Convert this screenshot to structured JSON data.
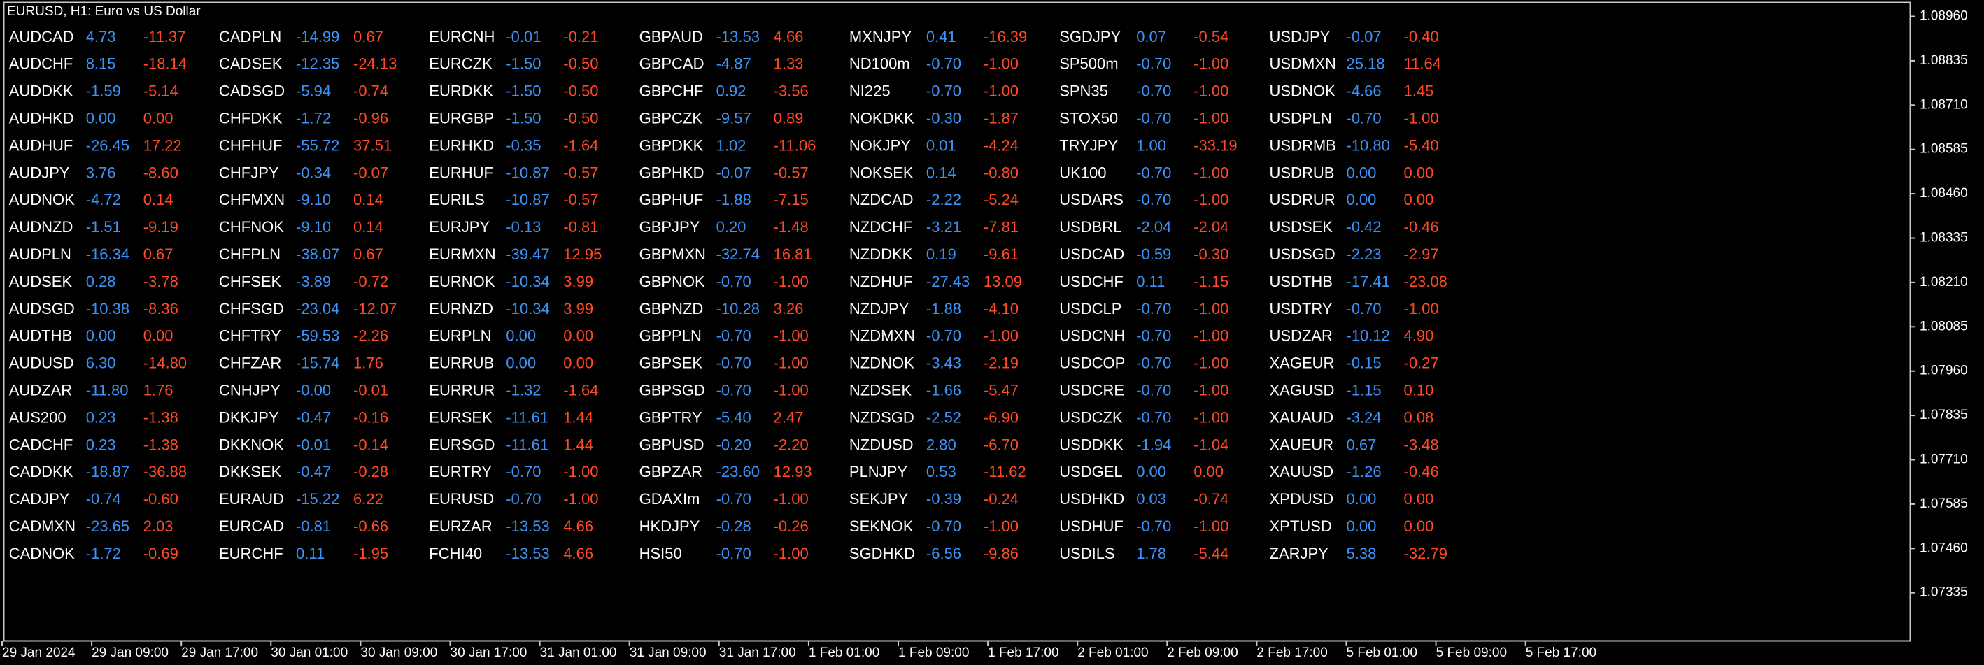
{
  "header": {
    "title": "EURUSD, H1:  Euro vs US Dollar"
  },
  "columns": [
    [
      [
        "AUDCAD",
        "4.73",
        "-11.37"
      ],
      [
        "AUDCHF",
        "8.15",
        "-18.14"
      ],
      [
        "AUDDKK",
        "-1.59",
        "-5.14"
      ],
      [
        "AUDHKD",
        "0.00",
        "0.00"
      ],
      [
        "AUDHUF",
        "-26.45",
        "17.22"
      ],
      [
        "AUDJPY",
        "3.76",
        "-8.60"
      ],
      [
        "AUDNOK",
        "-4.72",
        "0.14"
      ],
      [
        "AUDNZD",
        "-1.51",
        "-9.19"
      ],
      [
        "AUDPLN",
        "-16.34",
        "0.67"
      ],
      [
        "AUDSEK",
        "0.28",
        "-3.78"
      ],
      [
        "AUDSGD",
        "-10.38",
        "-8.36"
      ],
      [
        "AUDTHB",
        "0.00",
        "0.00"
      ],
      [
        "AUDUSD",
        "6.30",
        "-14.80"
      ],
      [
        "AUDZAR",
        "-11.80",
        "1.76"
      ],
      [
        "AUS200",
        "0.23",
        "-1.38"
      ],
      [
        "CADCHF",
        "0.23",
        "-1.38"
      ],
      [
        "CADDKK",
        "-18.87",
        "-36.88"
      ],
      [
        "CADJPY",
        "-0.74",
        "-0.60"
      ],
      [
        "CADMXN",
        "-23.65",
        "2.03"
      ],
      [
        "CADNOK",
        "-1.72",
        "-0.69"
      ]
    ],
    [
      [
        "CADPLN",
        "-14.99",
        "0.67"
      ],
      [
        "CADSEK",
        "-12.35",
        "-24.13"
      ],
      [
        "CADSGD",
        "-5.94",
        "-0.74"
      ],
      [
        "CHFDKK",
        "-1.72",
        "-0.96"
      ],
      [
        "CHFHUF",
        "-55.72",
        "37.51"
      ],
      [
        "CHFJPY",
        "-0.34",
        "-0.07"
      ],
      [
        "CHFMXN",
        "-9.10",
        "0.14"
      ],
      [
        "CHFNOK",
        "-9.10",
        "0.14"
      ],
      [
        "CHFPLN",
        "-38.07",
        "0.67"
      ],
      [
        "CHFSEK",
        "-3.89",
        "-0.72"
      ],
      [
        "CHFSGD",
        "-23.04",
        "-12.07"
      ],
      [
        "CHFTRY",
        "-59.53",
        "-2.26"
      ],
      [
        "CHFZAR",
        "-15.74",
        "1.76"
      ],
      [
        "CNHJPY",
        "-0.00",
        "-0.01"
      ],
      [
        "DKKJPY",
        "-0.47",
        "-0.16"
      ],
      [
        "DKKNOK",
        "-0.01",
        "-0.14"
      ],
      [
        "DKKSEK",
        "-0.47",
        "-0.28"
      ],
      [
        "EURAUD",
        "-15.22",
        "6.22"
      ],
      [
        "EURCAD",
        "-0.81",
        "-0.66"
      ],
      [
        "EURCHF",
        "0.11",
        "-1.95"
      ]
    ],
    [
      [
        "EURCNH",
        "-0.01",
        "-0.21"
      ],
      [
        "EURCZK",
        "-1.50",
        "-0.50"
      ],
      [
        "EURDKK",
        "-1.50",
        "-0.50"
      ],
      [
        "EURGBP",
        "-1.50",
        "-0.50"
      ],
      [
        "EURHKD",
        "-0.35",
        "-1.64"
      ],
      [
        "EURHUF",
        "-10.87",
        "-0.57"
      ],
      [
        "EURILS",
        "-10.87",
        "-0.57"
      ],
      [
        "EURJPY",
        "-0.13",
        "-0.81"
      ],
      [
        "EURMXN",
        "-39.47",
        "12.95"
      ],
      [
        "EURNOK",
        "-10.34",
        "3.99"
      ],
      [
        "EURNZD",
        "-10.34",
        "3.99"
      ],
      [
        "EURPLN",
        "0.00",
        "0.00"
      ],
      [
        "EURRUB",
        "0.00",
        "0.00"
      ],
      [
        "EURRUR",
        "-1.32",
        "-1.64"
      ],
      [
        "EURSEK",
        "-11.61",
        "1.44"
      ],
      [
        "EURSGD",
        "-11.61",
        "1.44"
      ],
      [
        "EURTRY",
        "-0.70",
        "-1.00"
      ],
      [
        "EURUSD",
        "-0.70",
        "-1.00"
      ],
      [
        "EURZAR",
        "-13.53",
        "4.66"
      ],
      [
        "FCHI40",
        "-13.53",
        "4.66"
      ]
    ],
    [
      [
        "GBPAUD",
        "-13.53",
        "4.66"
      ],
      [
        "GBPCAD",
        "-4.87",
        "1.33"
      ],
      [
        "GBPCHF",
        "0.92",
        "-3.56"
      ],
      [
        "GBPCZK",
        "-9.57",
        "0.89"
      ],
      [
        "GBPDKK",
        "1.02",
        "-11.06"
      ],
      [
        "GBPHKD",
        "-0.07",
        "-0.57"
      ],
      [
        "GBPHUF",
        "-1.88",
        "-7.15"
      ],
      [
        "GBPJPY",
        "0.20",
        "-1.48"
      ],
      [
        "GBPMXN",
        "-32.74",
        "16.81"
      ],
      [
        "GBPNOK",
        "-0.70",
        "-1.00"
      ],
      [
        "GBPNZD",
        "-10.28",
        "3.26"
      ],
      [
        "GBPPLN",
        "-0.70",
        "-1.00"
      ],
      [
        "GBPSEK",
        "-0.70",
        "-1.00"
      ],
      [
        "GBPSGD",
        "-0.70",
        "-1.00"
      ],
      [
        "GBPTRY",
        "-5.40",
        "2.47"
      ],
      [
        "GBPUSD",
        "-0.20",
        "-2.20"
      ],
      [
        "GBPZAR",
        "-23.60",
        "12.93"
      ],
      [
        "GDAXIm",
        "-0.70",
        "-1.00"
      ],
      [
        "HKDJPY",
        "-0.28",
        "-0.26"
      ],
      [
        "HSI50",
        "-0.70",
        "-1.00"
      ]
    ],
    [
      [
        "MXNJPY",
        "0.41",
        "-16.39"
      ],
      [
        "ND100m",
        "-0.70",
        "-1.00"
      ],
      [
        "NI225",
        "-0.70",
        "-1.00"
      ],
      [
        "NOKDKK",
        "-0.30",
        "-1.87"
      ],
      [
        "NOKJPY",
        "0.01",
        "-4.24"
      ],
      [
        "NOKSEK",
        "0.14",
        "-0.80"
      ],
      [
        "NZDCAD",
        "-2.22",
        "-5.24"
      ],
      [
        "NZDCHF",
        "-3.21",
        "-7.81"
      ],
      [
        "NZDDKK",
        "0.19",
        "-9.61"
      ],
      [
        "NZDHUF",
        "-27.43",
        "13.09"
      ],
      [
        "NZDJPY",
        "-1.88",
        "-4.10"
      ],
      [
        "NZDMXN",
        "-0.70",
        "-1.00"
      ],
      [
        "NZDNOK",
        "-3.43",
        "-2.19"
      ],
      [
        "NZDSEK",
        "-1.66",
        "-5.47"
      ],
      [
        "NZDSGD",
        "-2.52",
        "-6.90"
      ],
      [
        "NZDUSD",
        "2.80",
        "-6.70"
      ],
      [
        "PLNJPY",
        "0.53",
        "-11.62"
      ],
      [
        "SEKJPY",
        "-0.39",
        "-0.24"
      ],
      [
        "SEKNOK",
        "-0.70",
        "-1.00"
      ],
      [
        "SGDHKD",
        "-6.56",
        "-9.86"
      ]
    ],
    [
      [
        "SGDJPY",
        "0.07",
        "-0.54"
      ],
      [
        "SP500m",
        "-0.70",
        "-1.00"
      ],
      [
        "SPN35",
        "-0.70",
        "-1.00"
      ],
      [
        "STOX50",
        "-0.70",
        "-1.00"
      ],
      [
        "TRYJPY",
        "1.00",
        "-33.19"
      ],
      [
        "UK100",
        "-0.70",
        "-1.00"
      ],
      [
        "USDARS",
        "-0.70",
        "-1.00"
      ],
      [
        "USDBRL",
        "-2.04",
        "-2.04"
      ],
      [
        "USDCAD",
        "-0.59",
        "-0.30"
      ],
      [
        "USDCHF",
        "0.11",
        "-1.15"
      ],
      [
        "USDCLP",
        "-0.70",
        "-1.00"
      ],
      [
        "USDCNH",
        "-0.70",
        "-1.00"
      ],
      [
        "USDCOP",
        "-0.70",
        "-1.00"
      ],
      [
        "USDCRE",
        "-0.70",
        "-1.00"
      ],
      [
        "USDCZK",
        "-0.70",
        "-1.00"
      ],
      [
        "USDDKK",
        "-1.94",
        "-1.04"
      ],
      [
        "USDGEL",
        "0.00",
        "0.00"
      ],
      [
        "USDHKD",
        "0.03",
        "-0.74"
      ],
      [
        "USDHUF",
        "-0.70",
        "-1.00"
      ],
      [
        "USDILS",
        "1.78",
        "-5.44"
      ]
    ],
    [
      [
        "USDJPY",
        "-0.07",
        "-0.40"
      ],
      [
        "USDMXN",
        "25.18",
        "11.64"
      ],
      [
        "USDNOK",
        "-4.66",
        "1.45"
      ],
      [
        "USDPLN",
        "-0.70",
        "-1.00"
      ],
      [
        "USDRMB",
        "-10.80",
        "-5.40"
      ],
      [
        "USDRUB",
        "0.00",
        "0.00"
      ],
      [
        "USDRUR",
        "0.00",
        "0.00"
      ],
      [
        "USDSEK",
        "-0.42",
        "-0.46"
      ],
      [
        "USDSGD",
        "-2.23",
        "-2.97"
      ],
      [
        "USDTHB",
        "-17.41",
        "-23.08"
      ],
      [
        "USDTRY",
        "-0.70",
        "-1.00"
      ],
      [
        "USDZAR",
        "-10.12",
        "4.90"
      ],
      [
        "XAGEUR",
        "-0.15",
        "-0.27"
      ],
      [
        "XAGUSD",
        "-1.15",
        "0.10"
      ],
      [
        "XAUAUD",
        "-3.24",
        "0.08"
      ],
      [
        "XAUEUR",
        "0.67",
        "-3.48"
      ],
      [
        "XAUUSD",
        "-1.26",
        "-0.46"
      ],
      [
        "XPDUSD",
        "0.00",
        "0.00"
      ],
      [
        "XPTUSD",
        "0.00",
        "0.00"
      ],
      [
        "ZARJPY",
        "5.38",
        "-32.79"
      ]
    ]
  ],
  "price_axis": [
    "1.08960",
    "1.08835",
    "1.08710",
    "1.08585",
    "1.08460",
    "1.08335",
    "1.08210",
    "1.08085",
    "1.07960",
    "1.07835",
    "1.07710",
    "1.07585",
    "1.07460",
    "1.07335"
  ],
  "time_axis": [
    "29 Jan 2024",
    "29 Jan 09:00",
    "29 Jan 17:00",
    "30 Jan 01:00",
    "30 Jan 09:00",
    "30 Jan 17:00",
    "31 Jan 01:00",
    "31 Jan 09:00",
    "31 Jan 17:00",
    "1 Feb 01:00",
    "1 Feb 09:00",
    "1 Feb 17:00",
    "2 Feb 01:00",
    "2 Feb 09:00",
    "2 Feb 17:00",
    "5 Feb 01:00",
    "5 Feb 09:00",
    "5 Feb 17:00"
  ]
}
